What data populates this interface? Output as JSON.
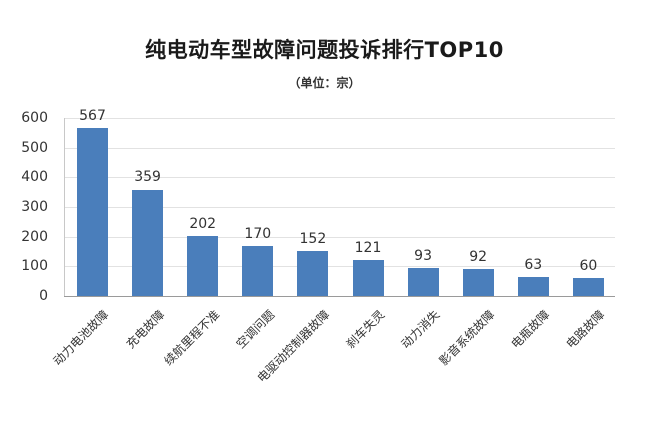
{
  "chart_data": {
    "type": "bar",
    "title": "纯电动车型故障问题投诉排行TOP10",
    "subtitle": "（单位：宗）",
    "xlabel": "",
    "ylabel": "",
    "ylim": [
      0,
      600
    ],
    "yticks": [
      0,
      100,
      200,
      300,
      400,
      500,
      600
    ],
    "grid": true,
    "legend": null,
    "bar_color": "#4a7ebb",
    "categories": [
      "动力电池故障",
      "充电故障",
      "续航里程不准",
      "空调问题",
      "电驱动控制器故障",
      "刹车失灵",
      "动力消失",
      "影音系统故障",
      "电瓶故障",
      "电路故障"
    ],
    "values": [
      567,
      359,
      202,
      170,
      152,
      121,
      93,
      92,
      63,
      60
    ]
  },
  "header": {
    "title": "纯电动车型故障问题投诉排行TOP10",
    "subtitle": "（单位：宗）"
  },
  "y_axis": {
    "ticks": [
      "600",
      "500",
      "400",
      "300",
      "200",
      "100",
      "0"
    ]
  },
  "bars": [
    {
      "label": "动力电池故障",
      "value": "567"
    },
    {
      "label": "充电故障",
      "value": "359"
    },
    {
      "label": "续航里程不准",
      "value": "202"
    },
    {
      "label": "空调问题",
      "value": "170"
    },
    {
      "label": "电驱动控制器故障",
      "value": "152"
    },
    {
      "label": "刹车失灵",
      "value": "121"
    },
    {
      "label": "动力消失",
      "value": "93"
    },
    {
      "label": "影音系统故障",
      "value": "92"
    },
    {
      "label": "电瓶故障",
      "value": "63"
    },
    {
      "label": "电路故障",
      "value": "60"
    }
  ]
}
